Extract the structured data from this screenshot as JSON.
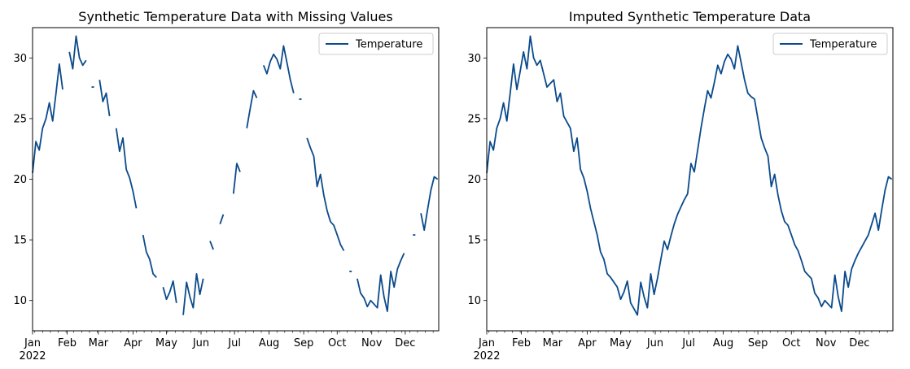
{
  "style": {
    "line_color": "#0b4a8b"
  },
  "chart_data": [
    {
      "type": "line",
      "title": "Synthetic Temperature Data with Missing Values",
      "xlabel": "",
      "ylabel": "",
      "x_range": [
        "2022-01-01",
        "2022-12-31"
      ],
      "xlim": [
        0,
        364
      ],
      "ylim": [
        7.5,
        32.5
      ],
      "yticks": [
        10,
        15,
        20,
        25,
        30
      ],
      "xtick_labels": [
        "Jan",
        "Feb",
        "Mar",
        "Apr",
        "May",
        "Jun",
        "Jul",
        "Aug",
        "Sep",
        "Oct",
        "Nov",
        "Dec"
      ],
      "xtick_year": "2022",
      "legend": {
        "placement": "top-right",
        "entries": [
          "Temperature"
        ]
      },
      "missing_values": true,
      "series": [
        {
          "name": "Temperature",
          "x": [
            "2022-01-01",
            "2022-01-04",
            "2022-01-07",
            "2022-01-10",
            "2022-01-13",
            "2022-01-16",
            "2022-01-19",
            "2022-01-22",
            "2022-01-25",
            "2022-01-28",
            "2022-01-31",
            "2022-02-03",
            "2022-02-06",
            "2022-02-09",
            "2022-02-12",
            "2022-02-15",
            "2022-02-18",
            "2022-02-21",
            "2022-02-24",
            "2022-02-27",
            "2022-03-02",
            "2022-03-05",
            "2022-03-08",
            "2022-03-11",
            "2022-03-14",
            "2022-03-17",
            "2022-03-20",
            "2022-03-23",
            "2022-03-26",
            "2022-03-29",
            "2022-04-01",
            "2022-04-04",
            "2022-04-07",
            "2022-04-10",
            "2022-04-13",
            "2022-04-16",
            "2022-04-19",
            "2022-04-22",
            "2022-04-25",
            "2022-04-28",
            "2022-05-01",
            "2022-05-04",
            "2022-05-07",
            "2022-05-10",
            "2022-05-13",
            "2022-05-16",
            "2022-05-19",
            "2022-05-22",
            "2022-05-25",
            "2022-05-28",
            "2022-05-31",
            "2022-06-03",
            "2022-06-06",
            "2022-06-09",
            "2022-06-12",
            "2022-06-15",
            "2022-06-18",
            "2022-06-21",
            "2022-06-24",
            "2022-06-27",
            "2022-06-30",
            "2022-07-03",
            "2022-07-06",
            "2022-07-09",
            "2022-07-12",
            "2022-07-15",
            "2022-07-18",
            "2022-07-21",
            "2022-07-24",
            "2022-07-27",
            "2022-07-30",
            "2022-08-02",
            "2022-08-05",
            "2022-08-08",
            "2022-08-11",
            "2022-08-14",
            "2022-08-17",
            "2022-08-20",
            "2022-08-23",
            "2022-08-26",
            "2022-08-29",
            "2022-09-01",
            "2022-09-04",
            "2022-09-07",
            "2022-09-10",
            "2022-09-13",
            "2022-09-16",
            "2022-09-19",
            "2022-09-22",
            "2022-09-25",
            "2022-09-28",
            "2022-10-01",
            "2022-10-04",
            "2022-10-07",
            "2022-10-10",
            "2022-10-13",
            "2022-10-16",
            "2022-10-19",
            "2022-10-22",
            "2022-10-25",
            "2022-10-28",
            "2022-10-31",
            "2022-11-03",
            "2022-11-06",
            "2022-11-09",
            "2022-11-12",
            "2022-11-15",
            "2022-11-18",
            "2022-11-21",
            "2022-11-24",
            "2022-11-27",
            "2022-11-30",
            "2022-12-03",
            "2022-12-06",
            "2022-12-09",
            "2022-12-12",
            "2022-12-15",
            "2022-12-18",
            "2022-12-21",
            "2022-12-24",
            "2022-12-27",
            "2022-12-30"
          ],
          "y": [
            20.5,
            23.1,
            22.4,
            24.2,
            25.0,
            26.3,
            24.8,
            27.1,
            29.5,
            27.4,
            null,
            30.5,
            29.1,
            31.8,
            30.0,
            29.4,
            29.8,
            null,
            27.6,
            null,
            28.2,
            26.4,
            27.1,
            25.2,
            null,
            24.2,
            22.3,
            23.4,
            20.8,
            20.1,
            19.0,
            17.6,
            null,
            15.4,
            14.0,
            13.4,
            12.2,
            11.9,
            null,
            11.1,
            10.1,
            10.7,
            11.6,
            9.8,
            null,
            8.8,
            11.5,
            10.3,
            9.4,
            12.2,
            10.5,
            11.8,
            null,
            14.9,
            14.2,
            null,
            16.3,
            17.1,
            null,
            null,
            18.8,
            21.3,
            20.6,
            null,
            24.2,
            25.8,
            27.3,
            26.7,
            null,
            29.4,
            28.7,
            29.7,
            30.3,
            29.9,
            29.1,
            31.0,
            29.6,
            28.2,
            27.1,
            null,
            26.6,
            null,
            23.4,
            22.6,
            21.9,
            19.4,
            20.4,
            18.7,
            17.4,
            16.5,
            16.2,
            15.4,
            14.6,
            14.1,
            null,
            12.4,
            null,
            11.8,
            10.6,
            10.2,
            9.5,
            10.0,
            9.7,
            9.4,
            12.1,
            10.3,
            9.1,
            12.4,
            11.1,
            12.6,
            13.3,
            13.9,
            null,
            null,
            15.4,
            null,
            17.2,
            15.8,
            17.5,
            19.1,
            20.2,
            20.0
          ]
        }
      ]
    },
    {
      "type": "line",
      "title": "Imputed Synthetic Temperature Data",
      "xlabel": "",
      "ylabel": "",
      "x_range": [
        "2022-01-01",
        "2022-12-31"
      ],
      "xlim": [
        0,
        364
      ],
      "ylim": [
        7.5,
        32.5
      ],
      "yticks": [
        10,
        15,
        20,
        25,
        30
      ],
      "xtick_labels": [
        "Jan",
        "Feb",
        "Mar",
        "Apr",
        "May",
        "Jun",
        "Jul",
        "Aug",
        "Sep",
        "Oct",
        "Nov",
        "Dec"
      ],
      "xtick_year": "2022",
      "legend": {
        "placement": "top-right",
        "entries": [
          "Temperature"
        ]
      },
      "missing_values": false,
      "series": [
        {
          "name": "Temperature",
          "x": [
            "2022-01-01",
            "2022-01-04",
            "2022-01-07",
            "2022-01-10",
            "2022-01-13",
            "2022-01-16",
            "2022-01-19",
            "2022-01-22",
            "2022-01-25",
            "2022-01-28",
            "2022-01-31",
            "2022-02-03",
            "2022-02-06",
            "2022-02-09",
            "2022-02-12",
            "2022-02-15",
            "2022-02-18",
            "2022-02-21",
            "2022-02-24",
            "2022-02-27",
            "2022-03-02",
            "2022-03-05",
            "2022-03-08",
            "2022-03-11",
            "2022-03-14",
            "2022-03-17",
            "2022-03-20",
            "2022-03-23",
            "2022-03-26",
            "2022-03-29",
            "2022-04-01",
            "2022-04-04",
            "2022-04-07",
            "2022-04-10",
            "2022-04-13",
            "2022-04-16",
            "2022-04-19",
            "2022-04-22",
            "2022-04-25",
            "2022-04-28",
            "2022-05-01",
            "2022-05-04",
            "2022-05-07",
            "2022-05-10",
            "2022-05-13",
            "2022-05-16",
            "2022-05-19",
            "2022-05-22",
            "2022-05-25",
            "2022-05-28",
            "2022-05-31",
            "2022-06-03",
            "2022-06-06",
            "2022-06-09",
            "2022-06-12",
            "2022-06-15",
            "2022-06-18",
            "2022-06-21",
            "2022-06-24",
            "2022-06-27",
            "2022-06-30",
            "2022-07-03",
            "2022-07-06",
            "2022-07-09",
            "2022-07-12",
            "2022-07-15",
            "2022-07-18",
            "2022-07-21",
            "2022-07-24",
            "2022-07-27",
            "2022-07-30",
            "2022-08-02",
            "2022-08-05",
            "2022-08-08",
            "2022-08-11",
            "2022-08-14",
            "2022-08-17",
            "2022-08-20",
            "2022-08-23",
            "2022-08-26",
            "2022-08-29",
            "2022-09-01",
            "2022-09-04",
            "2022-09-07",
            "2022-09-10",
            "2022-09-13",
            "2022-09-16",
            "2022-09-19",
            "2022-09-22",
            "2022-09-25",
            "2022-09-28",
            "2022-10-01",
            "2022-10-04",
            "2022-10-07",
            "2022-10-10",
            "2022-10-13",
            "2022-10-16",
            "2022-10-19",
            "2022-10-22",
            "2022-10-25",
            "2022-10-28",
            "2022-10-31",
            "2022-11-03",
            "2022-11-06",
            "2022-11-09",
            "2022-11-12",
            "2022-11-15",
            "2022-11-18",
            "2022-11-21",
            "2022-11-24",
            "2022-11-27",
            "2022-11-30",
            "2022-12-03",
            "2022-12-06",
            "2022-12-09",
            "2022-12-12",
            "2022-12-15",
            "2022-12-18",
            "2022-12-21",
            "2022-12-24",
            "2022-12-27",
            "2022-12-30"
          ],
          "y": [
            20.5,
            23.1,
            22.4,
            24.2,
            25.0,
            26.3,
            24.8,
            27.1,
            29.5,
            27.4,
            28.9,
            30.5,
            29.1,
            31.8,
            30.0,
            29.4,
            29.8,
            28.7,
            27.6,
            27.9,
            28.2,
            26.4,
            27.1,
            25.2,
            24.7,
            24.2,
            22.3,
            23.4,
            20.8,
            20.1,
            19.0,
            17.6,
            16.5,
            15.4,
            14.0,
            13.4,
            12.2,
            11.9,
            11.5,
            11.1,
            10.1,
            10.7,
            11.6,
            9.8,
            9.3,
            8.8,
            11.5,
            10.3,
            9.4,
            12.2,
            10.5,
            11.8,
            13.4,
            14.9,
            14.2,
            15.3,
            16.3,
            17.1,
            17.7,
            18.3,
            18.8,
            21.3,
            20.6,
            22.4,
            24.2,
            25.8,
            27.3,
            26.7,
            28.0,
            29.4,
            28.7,
            29.7,
            30.3,
            29.9,
            29.1,
            31.0,
            29.6,
            28.2,
            27.1,
            26.8,
            26.6,
            25.0,
            23.4,
            22.6,
            21.9,
            19.4,
            20.4,
            18.7,
            17.4,
            16.5,
            16.2,
            15.4,
            14.6,
            14.1,
            13.3,
            12.4,
            12.1,
            11.8,
            10.6,
            10.2,
            9.5,
            10.0,
            9.7,
            9.4,
            12.1,
            10.3,
            9.1,
            12.4,
            11.1,
            12.6,
            13.3,
            13.9,
            14.4,
            14.9,
            15.4,
            16.3,
            17.2,
            15.8,
            17.5,
            19.1,
            20.2,
            20.0
          ]
        }
      ]
    }
  ]
}
